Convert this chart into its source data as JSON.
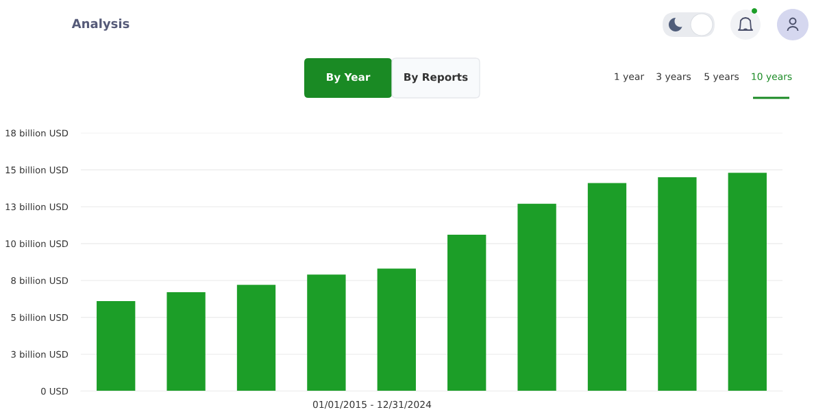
{
  "chart_data": {
    "type": "bar",
    "categories": [
      null,
      null,
      null,
      null,
      null,
      null,
      null,
      null,
      null,
      null
    ],
    "values": [
      6.1,
      6.7,
      7.2,
      7.9,
      8.3,
      10.6,
      12.7,
      14.1,
      14.5,
      14.8
    ],
    "color": "#1c9e28",
    "xlabel": "01/01/2015 - 12/31/2024",
    "ylim": [
      0,
      17.5
    ],
    "yticks": [
      {
        "value": 0,
        "label": "0 USD"
      },
      {
        "value": 2.5,
        "label": "3 billion USD"
      },
      {
        "value": 5,
        "label": "5 billion USD"
      },
      {
        "value": 7.5,
        "label": "8 billion USD"
      },
      {
        "value": 10,
        "label": "10 billion USD"
      },
      {
        "value": 12.5,
        "label": "13 billion USD"
      },
      {
        "value": 15,
        "label": "15 billion USD"
      },
      {
        "value": 17.5,
        "label": "18 billion USD"
      }
    ],
    "grid": "y",
    "annotations": [
      "Analysis",
      "By Year",
      "By Reports",
      "1 year",
      "3 years",
      "5 years",
      "10 years"
    ]
  }
}
